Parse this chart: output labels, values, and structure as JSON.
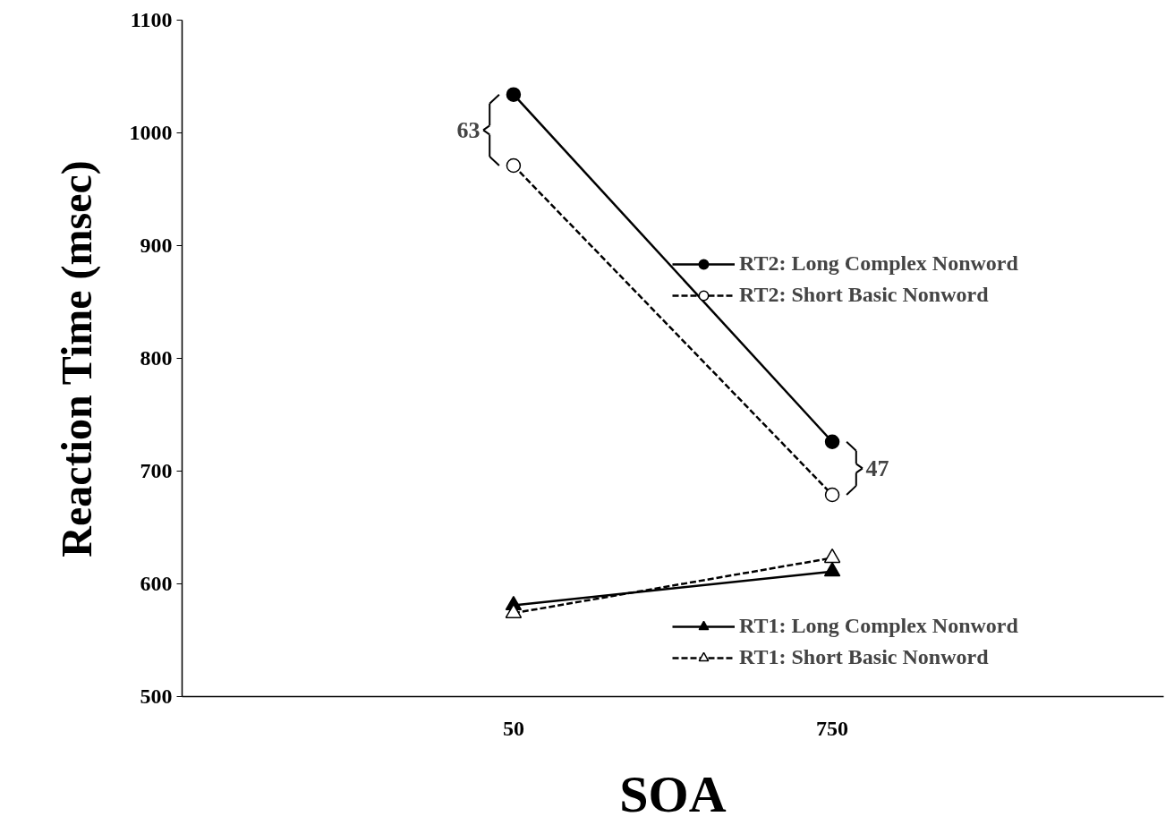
{
  "chart_data": {
    "type": "line",
    "xlabel": "SOA",
    "ylabel": "Reaction Time (msec)",
    "categories": [
      "50",
      "750"
    ],
    "series": [
      {
        "name": "RT2: Long Complex Nonword",
        "color": "#000000",
        "values": [
          1034,
          726
        ],
        "marker": "circle",
        "line_style": "solid"
      },
      {
        "name": "RT2: Short Basic Nonword",
        "color": "#000000",
        "values": [
          971,
          679
        ],
        "marker": "circle",
        "line_style": "dashed"
      },
      {
        "name": "RT1: Long Complex Nonword",
        "color": "#000000",
        "values": [
          581,
          611
        ],
        "marker": "triangle",
        "line_style": "solid"
      },
      {
        "name": "RT1: Short Basic Nonword",
        "color": "#000000",
        "values": [
          574,
          623
        ],
        "marker": "triangle",
        "line_style": "dashed"
      }
    ],
    "ylim": [
      500,
      1100
    ],
    "yticks": [
      500,
      600,
      700,
      800,
      900,
      1000,
      1100
    ],
    "grid": false,
    "legend": "right",
    "annotations": [
      "63",
      "47"
    ]
  }
}
